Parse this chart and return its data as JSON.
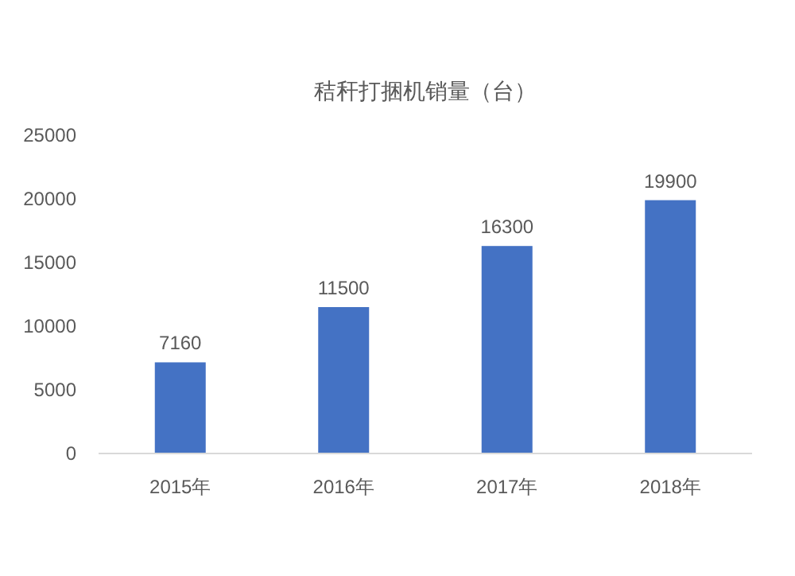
{
  "chart_data": {
    "type": "bar",
    "title": "秸秆打捆机销量（台）",
    "categories": [
      "2015年",
      "2016年",
      "2017年",
      "2018年"
    ],
    "values": [
      7160,
      11500,
      16300,
      19900
    ],
    "color": "#4472c4",
    "ylim": [
      0,
      25000
    ],
    "yticks": [
      0,
      5000,
      10000,
      15000,
      20000,
      25000
    ],
    "data_labels": true
  }
}
